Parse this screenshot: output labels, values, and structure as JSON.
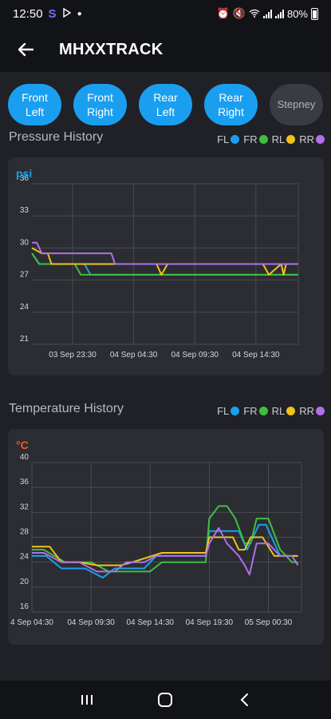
{
  "status_bar": {
    "time": "12:50",
    "battery": "80%",
    "notif_s": "S"
  },
  "app_bar": {
    "title": "MHXXTRACK"
  },
  "tires": [
    {
      "label": "Front\nLeft",
      "active": true
    },
    {
      "label": "Front\nRight",
      "active": true
    },
    {
      "label": "Rear\nLeft",
      "active": true
    },
    {
      "label": "Rear\nRight",
      "active": true
    },
    {
      "label": "Stepney",
      "active": false
    }
  ],
  "legend": [
    {
      "label": "FL",
      "color": "#1a9ff0"
    },
    {
      "label": "FR",
      "color": "#3fbf3f"
    },
    {
      "label": "RL",
      "color": "#f2c21a"
    },
    {
      "label": "RR",
      "color": "#b070e8"
    }
  ],
  "pressure": {
    "title": "Pressure History",
    "unit": "psi",
    "unit_color": "#1a9ff0",
    "chart_data": {
      "type": "line",
      "title": "Pressure History",
      "ylabel": "psi",
      "ylim": [
        21,
        36
      ],
      "yticks": [
        21,
        24,
        27,
        30,
        33,
        36
      ],
      "xlim": [
        0,
        21.8
      ],
      "xticks": [
        3.33,
        8.33,
        13.33,
        18.33
      ],
      "xtick_labels": [
        "03 Sep 23:30",
        "04 Sep 04:30",
        "04 Sep 09:30",
        "04 Sep 14:30"
      ],
      "grid": true,
      "series": [
        {
          "name": "FL",
          "color": "#1a9ff0",
          "x": [
            0,
            0.6,
            1.2,
            4.3,
            4.8,
            21.8
          ],
          "y": [
            29.5,
            28.5,
            28.5,
            28.5,
            27.5,
            27.5
          ]
        },
        {
          "name": "FR",
          "color": "#3fbf3f",
          "x": [
            0,
            0.6,
            1.6,
            3.5,
            4.0,
            5.5,
            21.8
          ],
          "y": [
            29.5,
            28.5,
            28.5,
            28.5,
            27.5,
            27.5,
            27.5
          ]
        },
        {
          "name": "RL",
          "color": "#f2c21a",
          "x": [
            0,
            0.8,
            1.3,
            1.6,
            4.0,
            10.2,
            10.6,
            11.1,
            11.6,
            18.9,
            19.4,
            20.4,
            20.6,
            20.8,
            21.8
          ],
          "y": [
            30.0,
            29.5,
            29.5,
            28.5,
            28.5,
            28.5,
            27.5,
            28.5,
            28.5,
            28.5,
            27.5,
            28.5,
            27.5,
            28.5,
            28.5
          ]
        },
        {
          "name": "RR",
          "color": "#b070e8",
          "x": [
            0,
            0.4,
            0.8,
            2.5,
            6.5,
            6.8,
            21.8
          ],
          "y": [
            30.5,
            30.5,
            29.5,
            29.5,
            29.5,
            28.5,
            28.5
          ]
        }
      ]
    }
  },
  "temperature": {
    "title": "Temperature History",
    "unit": "°C",
    "unit_color": "#f05a28",
    "chart_data": {
      "type": "line",
      "title": "Temperature History",
      "ylabel": "°C",
      "ylim": [
        16,
        40
      ],
      "yticks": [
        16,
        20,
        24,
        28,
        32,
        36,
        40
      ],
      "xlim": [
        0,
        22.8
      ],
      "xticks": [
        0,
        5,
        10,
        15,
        20
      ],
      "xtick_labels": [
        "4 Sep 04:30",
        "04 Sep 09:30",
        "04 Sep 14:30",
        "04 Sep 19:30",
        "05 Sep 00:30"
      ],
      "grid": true,
      "series": [
        {
          "name": "FL",
          "color": "#1a9ff0",
          "x": [
            0,
            1.2,
            2.5,
            4.5,
            6.0,
            7.0,
            9.5,
            10.5,
            14.7,
            15.0,
            16.0,
            17.5,
            18.2,
            19.2,
            19.8,
            21.0,
            22.5
          ],
          "y": [
            25,
            25,
            23,
            23,
            21.5,
            23,
            23,
            25,
            25,
            29,
            29,
            29,
            26,
            30,
            30,
            25,
            25
          ]
        },
        {
          "name": "FR",
          "color": "#3fbf3f",
          "x": [
            0,
            1.0,
            2.8,
            5.0,
            6.5,
            8.0,
            10.0,
            11.0,
            14.7,
            15.0,
            15.8,
            16.5,
            17.2,
            18.0,
            18.5,
            19.0,
            20.0,
            21.0,
            22.0,
            22.5
          ],
          "y": [
            26,
            26,
            24,
            24,
            22.5,
            22.5,
            22.5,
            24,
            24,
            31,
            33,
            33,
            31,
            27,
            27,
            31,
            31,
            26,
            24,
            24
          ]
        },
        {
          "name": "RL",
          "color": "#f2c21a",
          "x": [
            0,
            1.5,
            2.5,
            4.0,
            5.5,
            7.5,
            8.5,
            11.0,
            14.7,
            15.0,
            16.0,
            17.0,
            17.5,
            18.0,
            18.5,
            19.5,
            20.5,
            22.5
          ],
          "y": [
            26.5,
            26.5,
            24,
            24,
            23.5,
            23.5,
            24,
            25.5,
            25.5,
            28,
            28,
            28,
            26,
            26,
            28,
            28,
            25,
            25
          ]
        },
        {
          "name": "RR",
          "color": "#b070e8",
          "x": [
            0,
            1.0,
            2.5,
            4.0,
            5.5,
            7.0,
            8.0,
            9.5,
            10.5,
            14.7,
            15.0,
            15.8,
            16.5,
            17.5,
            18.0,
            18.4,
            19.0,
            20.0,
            21.0,
            22.0,
            22.5
          ],
          "y": [
            25.5,
            25.5,
            24,
            24,
            22.5,
            22.5,
            24,
            24,
            25,
            25,
            27,
            29.5,
            27,
            25,
            23.5,
            22,
            27,
            27,
            25,
            25,
            23.5
          ]
        }
      ]
    }
  }
}
